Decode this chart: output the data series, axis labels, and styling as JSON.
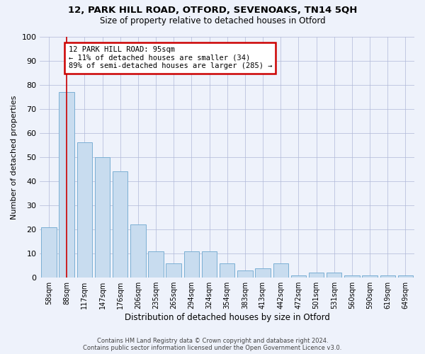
{
  "title1": "12, PARK HILL ROAD, OTFORD, SEVENOAKS, TN14 5QH",
  "title2": "Size of property relative to detached houses in Otford",
  "xlabel": "Distribution of detached houses by size in Otford",
  "ylabel": "Number of detached properties",
  "categories": [
    "58sqm",
    "88sqm",
    "117sqm",
    "147sqm",
    "176sqm",
    "206sqm",
    "235sqm",
    "265sqm",
    "294sqm",
    "324sqm",
    "354sqm",
    "383sqm",
    "413sqm",
    "442sqm",
    "472sqm",
    "501sqm",
    "531sqm",
    "560sqm",
    "590sqm",
    "619sqm",
    "649sqm"
  ],
  "values": [
    21,
    77,
    56,
    50,
    44,
    22,
    11,
    6,
    11,
    11,
    6,
    3,
    4,
    6,
    1,
    2,
    2,
    1,
    1,
    1,
    1
  ],
  "bar_color": "#c8dcef",
  "bar_edge_color": "#7bafd4",
  "ylim": [
    0,
    100
  ],
  "yticks": [
    0,
    10,
    20,
    30,
    40,
    50,
    60,
    70,
    80,
    90,
    100
  ],
  "vline_x": 1,
  "vline_color": "#cc0000",
  "annotation_title": "12 PARK HILL ROAD: 95sqm",
  "annotation_line1": "← 11% of detached houses are smaller (34)",
  "annotation_line2": "89% of semi-detached houses are larger (285) →",
  "annotation_box_color": "#cc0000",
  "footer1": "Contains HM Land Registry data © Crown copyright and database right 2024.",
  "footer2": "Contains public sector information licensed under the Open Government Licence v3.0.",
  "bg_color": "#eef2fb",
  "plot_bg_color": "#eef2fb",
  "grid_color": "#b0b8d8"
}
